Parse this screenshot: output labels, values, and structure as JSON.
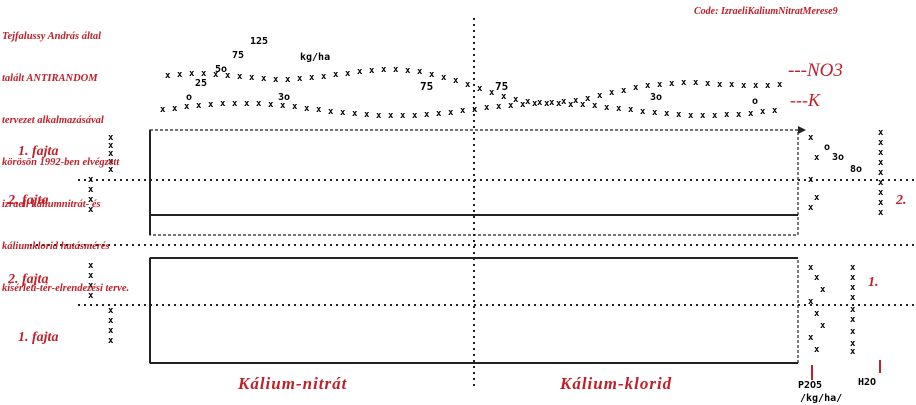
{
  "description_lines": [
    "Tejfalussy András által",
    "talált ANTIRANDOM",
    "tervezet alkalmazásával",
    "körösön 1992-ben elvégzett",
    "izraeli káliumnitrát- és",
    "káliumklorid hatásmérés",
    "kísérleti-tér-elrendezési terve."
  ],
  "code_label": "Code: IzraeliKaliumNitratMerese9",
  "dose_scale": {
    "values": [
      "25",
      "5o",
      "75",
      "125"
    ],
    "unit": "kg/ha"
  },
  "series_labels": {
    "nitrate": "---NO3",
    "potassium": "---K"
  },
  "dose_marks_top": [
    "o",
    "3o",
    "75",
    "75",
    "3o",
    "o"
  ],
  "variety_labels": [
    "1. fajta",
    "2. fajta",
    "2. fajta",
    "1. fajta"
  ],
  "right_labels": {
    "top": "2.",
    "bottom": "1."
  },
  "treatment_labels": {
    "left": "Kálium-nitrát",
    "right": "Kálium-klorid"
  },
  "right_marks": {
    "col1": [
      "o",
      "3o",
      "8o"
    ],
    "col2": [
      "x"
    ]
  },
  "bottom_right": {
    "p2o5": "P2O5",
    "h2o": "H2O",
    "unit": "/kg/ha/"
  },
  "colors": {
    "accent": "#c0202a",
    "ink": "#222222"
  }
}
